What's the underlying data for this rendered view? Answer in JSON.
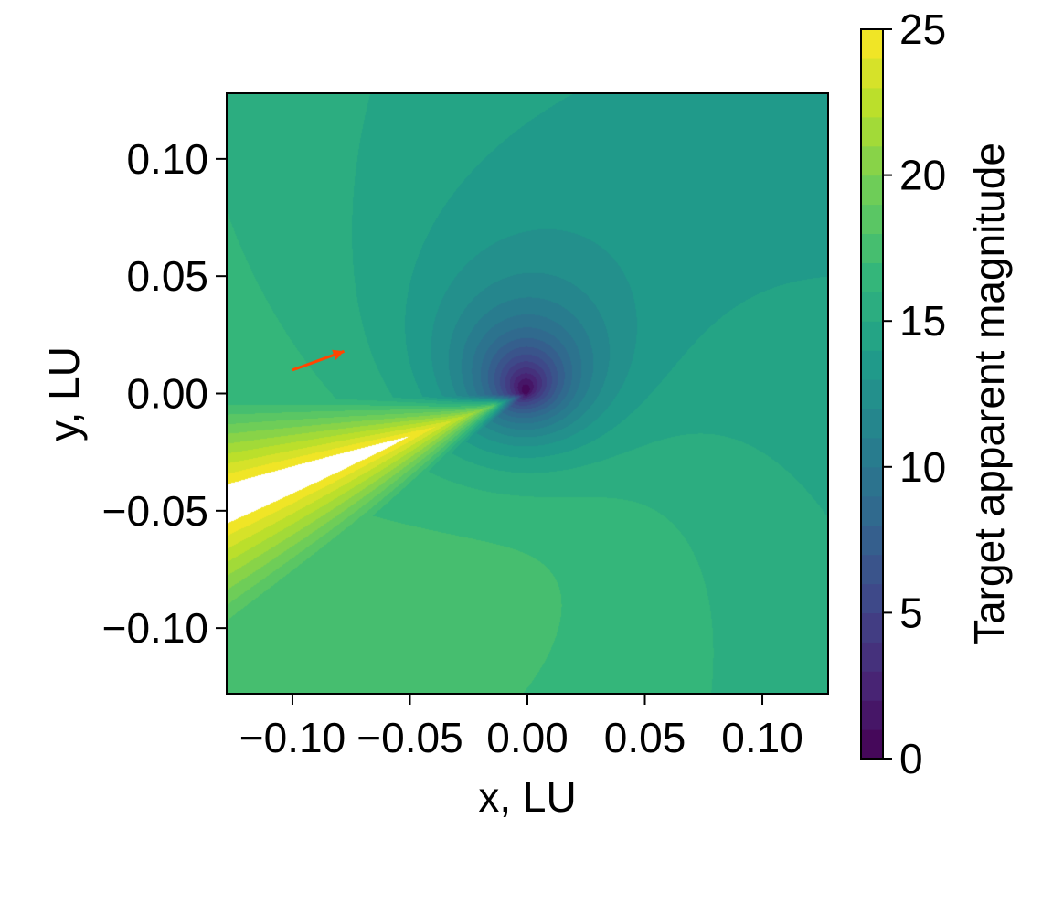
{
  "chart_data": {
    "type": "heatmap",
    "subtype": "filled-contour",
    "xlabel": "x, LU",
    "ylabel": "y, LU",
    "xlim": [
      -0.128,
      0.128
    ],
    "ylim": [
      -0.128,
      0.128
    ],
    "x_ticks": [
      -0.1,
      -0.05,
      0.0,
      0.05,
      0.1
    ],
    "x_tick_labels": [
      "−0.10",
      "−0.05",
      "0.00",
      "0.05",
      "0.10"
    ],
    "y_ticks": [
      0.1,
      0.05,
      0.0,
      -0.05,
      -0.1
    ],
    "y_tick_labels": [
      "0.10",
      "0.05",
      "0.00",
      "−0.05",
      "−0.10"
    ],
    "colorbar": {
      "label": "Target apparent magnitude",
      "range": [
        0,
        25
      ],
      "ticks": [
        0,
        5,
        10,
        15,
        20,
        25
      ],
      "tick_labels": [
        "0",
        "5",
        "10",
        "15",
        "20",
        "25"
      ],
      "colormap": "viridis",
      "level_step": 1
    },
    "field": {
      "center": [
        0.0,
        0.0
      ],
      "core_magnitude": 0,
      "background_magnitude_range": [
        13,
        19
      ],
      "saturation_gap_direction_deg": 200,
      "saturation_gap_color": "#ffffff"
    },
    "annotation": {
      "type": "arrow",
      "from": [
        -0.1,
        0.01
      ],
      "to": [
        -0.078,
        0.018
      ],
      "color": "#ff4500"
    },
    "grid": false
  }
}
